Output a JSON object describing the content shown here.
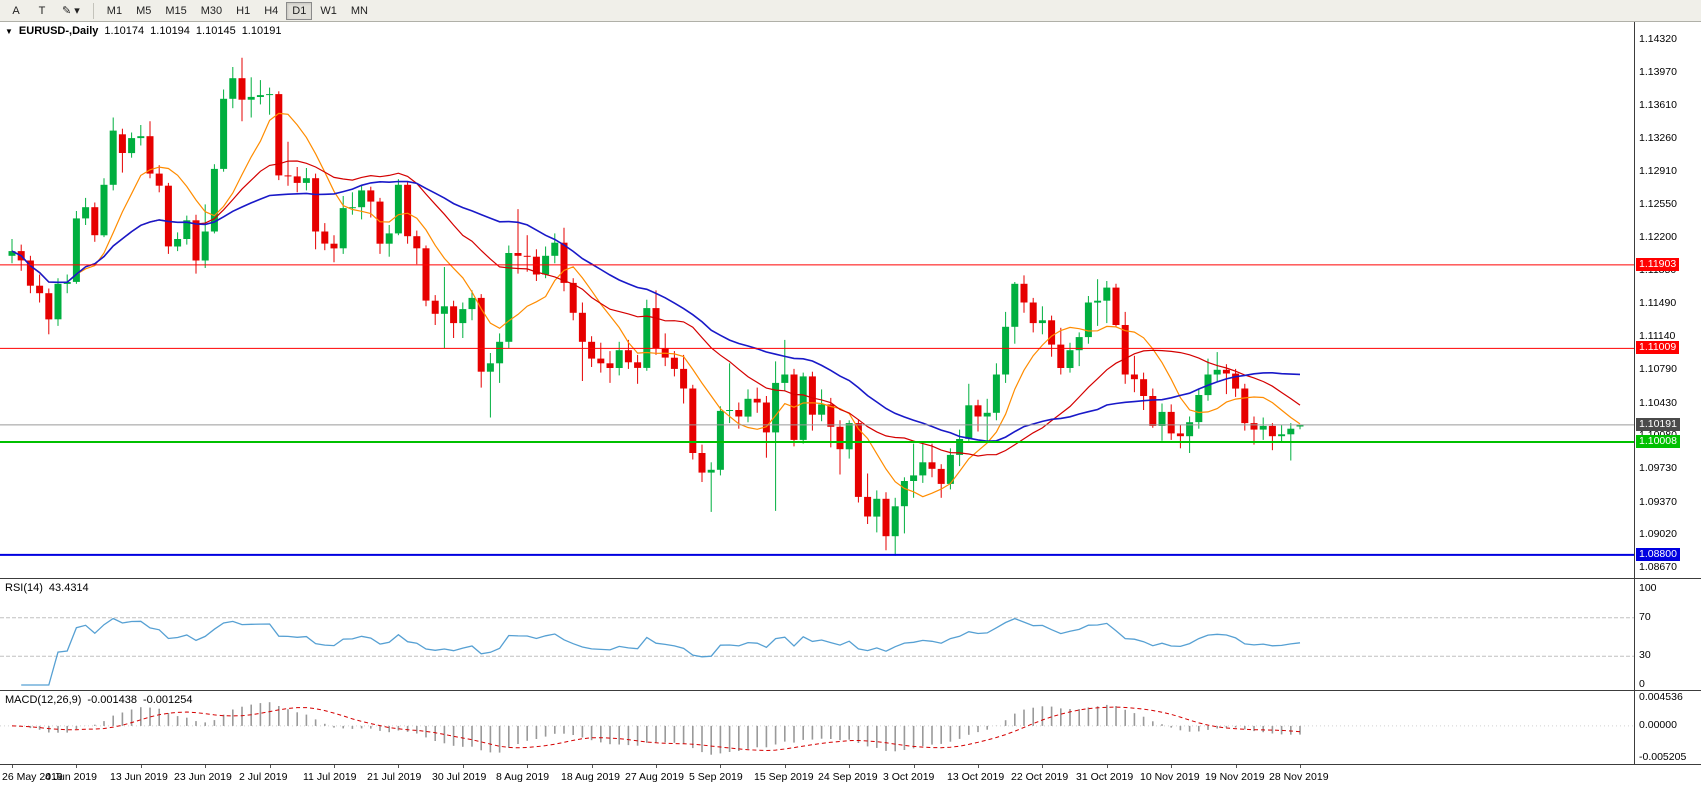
{
  "toolbar": {
    "tool_buttons": [
      {
        "name": "a-tool-button",
        "label": "A"
      },
      {
        "name": "text-tool-button",
        "label": "T"
      },
      {
        "name": "draw-tool-button",
        "label": "✎",
        "dropdown": "▾"
      }
    ],
    "timeframes": [
      "M1",
      "M5",
      "M15",
      "M30",
      "H1",
      "H4",
      "D1",
      "W1",
      "MN"
    ],
    "active_timeframe": "D1"
  },
  "chart": {
    "menu_icon": "▼",
    "title": "EURUSD-,Daily",
    "open": "1.10174",
    "high": "1.10194",
    "low": "1.10145",
    "close": "1.10191"
  },
  "rsi_panel": {
    "label": "RSI(14)",
    "value": "43.4314"
  },
  "macd_panel": {
    "label": "MACD(12,26,9)",
    "value_main": "-0.001438",
    "value_signal": "-0.001254"
  },
  "chart_data": {
    "type": "candlestick",
    "symbol": "EURUSD-",
    "period": "Daily",
    "bull_color": "#00AF3F",
    "bear_color": "#E60000",
    "price_axis": {
      "max": 1.1432,
      "min": 1.0867,
      "ticks": [
        "1.14320",
        "1.13970",
        "1.13610",
        "1.13260",
        "1.12910",
        "1.12550",
        "1.12200",
        "1.11850",
        "1.11490",
        "1.11140",
        "1.10790",
        "1.10430",
        "1.10080",
        "1.09730",
        "1.09370",
        "1.09020",
        "1.08670"
      ]
    },
    "x_labels": [
      "26 May 2019",
      "4 Jun 2019",
      "13 Jun 2019",
      "23 Jun 2019",
      "2 Jul 2019",
      "11 Jul 2019",
      "21 Jul 2019",
      "30 Jul 2019",
      "8 Aug 2019",
      "18 Aug 2019",
      "27 Aug 2019",
      "5 Sep 2019",
      "15 Sep 2019",
      "24 Sep 2019",
      "3 Oct 2019",
      "13 Oct 2019",
      "22 Oct 2019",
      "31 Oct 2019",
      "10 Nov 2019",
      "19 Nov 2019",
      "28 Nov 2019"
    ],
    "bars_per_label": 7,
    "moving_averages": [
      {
        "type": "sma",
        "period": 8,
        "color": "#FF8C00",
        "width": 1.2
      },
      {
        "type": "sma",
        "period": 21,
        "color": "#D40000",
        "width": 1.2
      },
      {
        "type": "sma",
        "period": 34,
        "color": "#1919C8",
        "width": 1.6
      }
    ],
    "horizontal_lines": [
      {
        "price": 1.11903,
        "color": "#FF0000",
        "label": "1.11903",
        "width": 1
      },
      {
        "price": 1.11009,
        "color": "#FF0000",
        "label": "1.11009",
        "width": 1
      },
      {
        "price": 1.10008,
        "color": "#00C000",
        "label": "1.10008",
        "width": 2
      },
      {
        "price": 1.088,
        "color": "#0000E0",
        "label": "1.08800",
        "width": 2
      }
    ],
    "current_price": {
      "value": 1.10191,
      "label": "1.10191",
      "line_color": "#9a9a9a",
      "label_bg": "#4a4a4a"
    },
    "rsi": {
      "period": 14,
      "color": "#56A0D3",
      "current": 43.4314,
      "levels": [
        "100",
        "70",
        "30",
        "0"
      ],
      "level_values": [
        100,
        70,
        30,
        0
      ],
      "dashed_levels": [
        70,
        30
      ]
    },
    "macd": {
      "fast": 12,
      "slow": 26,
      "signal_period": 9,
      "histogram_color": "#9a9a9a",
      "signal_color": "#D40000",
      "values": {
        "macd": -0.001438,
        "signal": -0.001254
      },
      "scale": {
        "max": 0.004536,
        "min": -0.005205,
        "labels": [
          "0.004536",
          "0.00000",
          "-0.005205"
        ]
      }
    },
    "candles": [
      [
        1.12,
        1.1218,
        1.1192,
        1.1205
      ],
      [
        1.1205,
        1.1212,
        1.1184,
        1.1195
      ],
      [
        1.1195,
        1.12,
        1.116,
        1.1168
      ],
      [
        1.1168,
        1.118,
        1.115,
        1.116
      ],
      [
        1.116,
        1.1165,
        1.1116,
        1.1132
      ],
      [
        1.1132,
        1.1176,
        1.1125,
        1.117
      ],
      [
        1.117,
        1.118,
        1.116,
        1.1172
      ],
      [
        1.1172,
        1.1248,
        1.117,
        1.124
      ],
      [
        1.124,
        1.1262,
        1.1233,
        1.1252
      ],
      [
        1.1252,
        1.1257,
        1.1215,
        1.1222
      ],
      [
        1.1222,
        1.1283,
        1.122,
        1.1276
      ],
      [
        1.1276,
        1.1348,
        1.127,
        1.1334
      ],
      [
        1.133,
        1.1336,
        1.1289,
        1.131
      ],
      [
        1.131,
        1.1332,
        1.1305,
        1.1326
      ],
      [
        1.1326,
        1.134,
        1.1318,
        1.1328
      ],
      [
        1.1328,
        1.1344,
        1.1283,
        1.1288
      ],
      [
        1.1288,
        1.1297,
        1.1268,
        1.1275
      ],
      [
        1.1275,
        1.1278,
        1.1202,
        1.121
      ],
      [
        1.121,
        1.1225,
        1.1205,
        1.1218
      ],
      [
        1.1218,
        1.1243,
        1.1212,
        1.1238
      ],
      [
        1.1238,
        1.1244,
        1.1181,
        1.1195
      ],
      [
        1.1195,
        1.1255,
        1.1187,
        1.1226
      ],
      [
        1.1226,
        1.1298,
        1.1224,
        1.1293
      ],
      [
        1.1293,
        1.1378,
        1.129,
        1.1368
      ],
      [
        1.1368,
        1.1402,
        1.1358,
        1.139
      ],
      [
        1.139,
        1.1412,
        1.1344,
        1.1367
      ],
      [
        1.1367,
        1.1391,
        1.1348,
        1.137
      ],
      [
        1.137,
        1.1388,
        1.1362,
        1.1372
      ],
      [
        1.1372,
        1.138,
        1.1351,
        1.1373
      ],
      [
        1.1373,
        1.1376,
        1.1281,
        1.1286
      ],
      [
        1.1286,
        1.1322,
        1.1275,
        1.1285
      ],
      [
        1.1285,
        1.1295,
        1.1268,
        1.1278
      ],
      [
        1.1278,
        1.1294,
        1.127,
        1.1283
      ],
      [
        1.1283,
        1.1288,
        1.1207,
        1.1226
      ],
      [
        1.1226,
        1.1235,
        1.1206,
        1.1213
      ],
      [
        1.1213,
        1.1222,
        1.1193,
        1.1208
      ],
      [
        1.1208,
        1.1264,
        1.1202,
        1.1251
      ],
      [
        1.1251,
        1.1268,
        1.1244,
        1.1252
      ],
      [
        1.1252,
        1.1275,
        1.1239,
        1.127
      ],
      [
        1.127,
        1.1274,
        1.1241,
        1.1258
      ],
      [
        1.1258,
        1.1262,
        1.1202,
        1.1213
      ],
      [
        1.1213,
        1.1233,
        1.1199,
        1.1224
      ],
      [
        1.1224,
        1.1282,
        1.1222,
        1.1276
      ],
      [
        1.1276,
        1.128,
        1.1213,
        1.1221
      ],
      [
        1.1221,
        1.1227,
        1.1191,
        1.1208
      ],
      [
        1.1208,
        1.1211,
        1.1146,
        1.1152
      ],
      [
        1.1152,
        1.1158,
        1.1126,
        1.1138
      ],
      [
        1.1138,
        1.1188,
        1.1101,
        1.1146
      ],
      [
        1.1146,
        1.1152,
        1.1112,
        1.1128
      ],
      [
        1.1128,
        1.115,
        1.1112,
        1.1143
      ],
      [
        1.1143,
        1.1163,
        1.1131,
        1.1155
      ],
      [
        1.1155,
        1.1159,
        1.1059,
        1.1076
      ],
      [
        1.1076,
        1.1096,
        1.1027,
        1.1085
      ],
      [
        1.1085,
        1.1117,
        1.1064,
        1.1108
      ],
      [
        1.1108,
        1.1211,
        1.1101,
        1.1203
      ],
      [
        1.1203,
        1.125,
        1.1181,
        1.12
      ],
      [
        1.12,
        1.1222,
        1.1183,
        1.1199
      ],
      [
        1.1199,
        1.1207,
        1.1173,
        1.118
      ],
      [
        1.118,
        1.121,
        1.1176,
        1.12
      ],
      [
        1.12,
        1.1224,
        1.1192,
        1.1214
      ],
      [
        1.1214,
        1.123,
        1.1162,
        1.1171
      ],
      [
        1.1171,
        1.1176,
        1.1131,
        1.1139
      ],
      [
        1.1139,
        1.115,
        1.1066,
        1.1108
      ],
      [
        1.1108,
        1.1114,
        1.1081,
        1.109
      ],
      [
        1.109,
        1.1107,
        1.1075,
        1.1085
      ],
      [
        1.1085,
        1.1098,
        1.1064,
        1.108
      ],
      [
        1.108,
        1.1108,
        1.1072,
        1.1099
      ],
      [
        1.1099,
        1.111,
        1.1079,
        1.1086
      ],
      [
        1.1086,
        1.1094,
        1.1063,
        1.108
      ],
      [
        1.108,
        1.1153,
        1.1077,
        1.1144
      ],
      [
        1.1144,
        1.1163,
        1.1094,
        1.1101
      ],
      [
        1.1101,
        1.1117,
        1.1082,
        1.1091
      ],
      [
        1.1091,
        1.1098,
        1.1071,
        1.1079
      ],
      [
        1.1079,
        1.1094,
        1.1042,
        1.1058
      ],
      [
        1.1058,
        1.1062,
        1.0982,
        1.0989
      ],
      [
        1.0989,
        1.0998,
        1.0958,
        1.0968
      ],
      [
        1.0968,
        1.0979,
        1.0926,
        1.0971
      ],
      [
        1.0971,
        1.1039,
        1.0965,
        1.1034
      ],
      [
        1.1034,
        1.1085,
        1.1021,
        1.1035
      ],
      [
        1.1035,
        1.1043,
        1.1015,
        1.1028
      ],
      [
        1.1028,
        1.1057,
        1.1022,
        1.1047
      ],
      [
        1.1047,
        1.1059,
        1.1032,
        1.1043
      ],
      [
        1.1043,
        1.105,
        1.0984,
        1.1011
      ],
      [
        1.1011,
        1.1087,
        1.0927,
        1.1064
      ],
      [
        1.1064,
        1.111,
        1.1055,
        1.1073
      ],
      [
        1.1073,
        1.1079,
        1.0996,
        1.1003
      ],
      [
        1.1003,
        1.1075,
        1.0999,
        1.1071
      ],
      [
        1.1071,
        1.1076,
        1.1013,
        1.103
      ],
      [
        1.103,
        1.1057,
        1.1023,
        1.1041
      ],
      [
        1.1041,
        1.1048,
        1.0995,
        1.1017
      ],
      [
        1.1017,
        1.1024,
        1.0966,
        1.0993
      ],
      [
        1.0993,
        1.1024,
        1.0983,
        1.1021
      ],
      [
        1.1021,
        1.1025,
        1.0936,
        1.0942
      ],
      [
        1.0942,
        1.0967,
        1.0913,
        1.0921
      ],
      [
        1.0921,
        1.0949,
        1.0904,
        1.094
      ],
      [
        1.094,
        1.0947,
        1.0885,
        1.09
      ],
      [
        1.09,
        1.0941,
        1.0879,
        1.0932
      ],
      [
        1.0932,
        1.0963,
        1.0903,
        1.0959
      ],
      [
        1.0959,
        1.0999,
        1.0941,
        1.0965
      ],
      [
        1.0965,
        1.0999,
        1.0957,
        1.0979
      ],
      [
        1.0979,
        1.0999,
        1.0963,
        1.0972
      ],
      [
        1.0972,
        1.0977,
        1.0941,
        1.0956
      ],
      [
        1.0956,
        1.0994,
        1.095,
        1.0987
      ],
      [
        1.0987,
        1.1014,
        1.0975,
        1.1004
      ],
      [
        1.1004,
        1.1063,
        1.1002,
        1.104
      ],
      [
        1.104,
        1.1046,
        1.1012,
        1.1028
      ],
      [
        1.1028,
        1.1047,
        1.1001,
        1.1032
      ],
      [
        1.1032,
        1.1085,
        1.1024,
        1.1073
      ],
      [
        1.1073,
        1.114,
        1.1064,
        1.1124
      ],
      [
        1.1124,
        1.1172,
        1.1106,
        1.117
      ],
      [
        1.117,
        1.1179,
        1.1139,
        1.115
      ],
      [
        1.115,
        1.1155,
        1.1118,
        1.1128
      ],
      [
        1.1128,
        1.1146,
        1.1116,
        1.1131
      ],
      [
        1.1131,
        1.1136,
        1.1092,
        1.1105
      ],
      [
        1.1105,
        1.1123,
        1.1073,
        1.108
      ],
      [
        1.108,
        1.1107,
        1.1075,
        1.1099
      ],
      [
        1.1099,
        1.1118,
        1.1082,
        1.1113
      ],
      [
        1.1113,
        1.1157,
        1.1106,
        1.115
      ],
      [
        1.115,
        1.1175,
        1.1125,
        1.1152
      ],
      [
        1.1152,
        1.1173,
        1.1128,
        1.1166
      ],
      [
        1.1166,
        1.117,
        1.1124,
        1.1126
      ],
      [
        1.1126,
        1.114,
        1.1063,
        1.1073
      ],
      [
        1.1073,
        1.1093,
        1.1054,
        1.1068
      ],
      [
        1.1068,
        1.1075,
        1.1035,
        1.105
      ],
      [
        1.105,
        1.1058,
        1.1016,
        1.1018
      ],
      [
        1.1018,
        1.1042,
        1.1002,
        1.1033
      ],
      [
        1.1033,
        1.1041,
        1.1003,
        1.101
      ],
      [
        1.101,
        1.1019,
        1.0994,
        1.1007
      ],
      [
        1.1007,
        1.1028,
        1.0989,
        1.1022
      ],
      [
        1.1022,
        1.1057,
        1.1015,
        1.1051
      ],
      [
        1.1051,
        1.109,
        1.1045,
        1.1073
      ],
      [
        1.1073,
        1.1097,
        1.1065,
        1.1078
      ],
      [
        1.1078,
        1.1084,
        1.1052,
        1.1074
      ],
      [
        1.1074,
        1.1079,
        1.1049,
        1.1058
      ],
      [
        1.1058,
        1.1063,
        1.1013,
        1.1021
      ],
      [
        1.1021,
        1.1028,
        1.0998,
        1.1014
      ],
      [
        1.1014,
        1.1027,
        1.1003,
        1.1018
      ],
      [
        1.1018,
        1.1021,
        1.0992,
        1.1007
      ],
      [
        1.1007,
        1.1019,
        1.1001,
        1.1009
      ],
      [
        1.1009,
        1.1021,
        1.0981,
        1.1015
      ],
      [
        1.10174,
        1.10194,
        1.10145,
        1.10191
      ]
    ]
  }
}
